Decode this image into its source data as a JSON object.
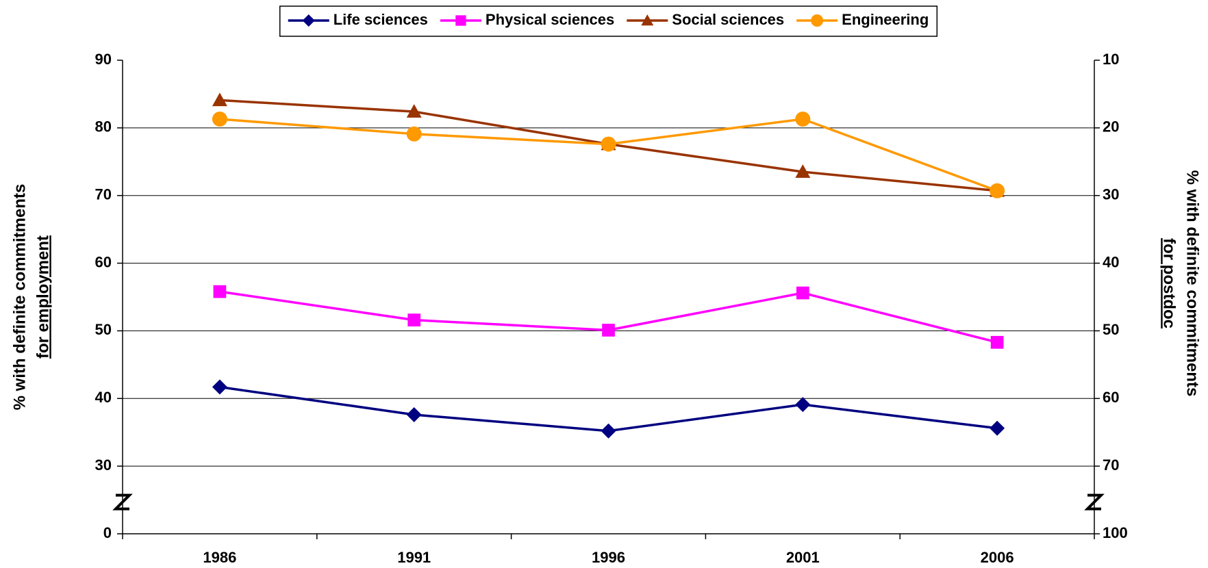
{
  "chart_data": {
    "type": "line",
    "categories": [
      "1986",
      "1991",
      "1996",
      "2001",
      "2006"
    ],
    "series": [
      {
        "name": "Life sciences",
        "color": "#000080",
        "marker": "diamond",
        "values": [
          41.7,
          37.6,
          35.2,
          39.1,
          35.6
        ]
      },
      {
        "name": "Physical sciences",
        "color": "#ff00ff",
        "marker": "square",
        "values": [
          55.8,
          51.6,
          50.1,
          55.6,
          48.3
        ]
      },
      {
        "name": "Social sciences",
        "color": "#993300",
        "marker": "triangle",
        "values": [
          84.1,
          82.4,
          77.6,
          73.5,
          70.7
        ]
      },
      {
        "name": "Engineering",
        "color": "#ff9900",
        "marker": "circle",
        "values": [
          81.3,
          79.1,
          77.6,
          81.3,
          70.7
        ]
      }
    ],
    "ylabel": [
      "% with definite commitments",
      "for employment"
    ],
    "y2label": [
      "% with definite commitments",
      "for postdoc"
    ],
    "ylim": [
      0,
      90
    ],
    "ybreak": [
      0,
      20
    ],
    "yticks": [
      0,
      30,
      40,
      50,
      60,
      70,
      80,
      90
    ],
    "y2lim": [
      100,
      10
    ],
    "y2break": [
      80,
      100
    ],
    "y2ticks": [
      100,
      70,
      60,
      50,
      40,
      30,
      20,
      10
    ],
    "grid": true,
    "legend": "top"
  }
}
